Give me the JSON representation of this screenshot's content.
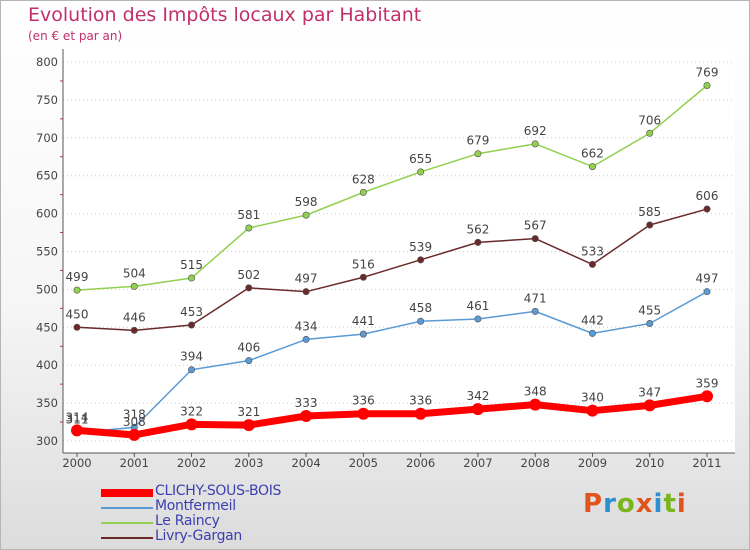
{
  "header": {
    "title": "Evolution des Impôts locaux par Habitant",
    "subtitle": "(en € et par an)"
  },
  "logo": {
    "text": "Proxiti",
    "colors": [
      "#e1541d",
      "#2c8fd0",
      "#7ab51d",
      "#e1541d",
      "#2c8fd0",
      "#7ab51d",
      "#e1541d"
    ]
  },
  "chart_data": {
    "type": "line",
    "x": [
      "2000",
      "2001",
      "2002",
      "2003",
      "2004",
      "2005",
      "2006",
      "2007",
      "2008",
      "2009",
      "2010",
      "2011"
    ],
    "ylim": [
      300,
      800
    ],
    "yticks": [
      300,
      350,
      400,
      450,
      500,
      550,
      600,
      650,
      700,
      750,
      800
    ],
    "grid": true,
    "legend_position": "bottom-left",
    "series": [
      {
        "name": "CLICHY-SOUS-BOIS",
        "color": "#ff0000",
        "emphasis": true,
        "values": [
          314,
          308,
          322,
          321,
          333,
          336,
          336,
          342,
          348,
          340,
          347,
          359
        ]
      },
      {
        "name": "Montfermeil",
        "color": "#5b9bd5",
        "values": [
          311,
          318,
          394,
          406,
          434,
          441,
          458,
          461,
          471,
          442,
          455,
          497
        ]
      },
      {
        "name": "Le Raincy",
        "color": "#92d050",
        "values": [
          499,
          504,
          515,
          581,
          598,
          628,
          655,
          679,
          692,
          662,
          706,
          769
        ]
      },
      {
        "name": "Livry-Gargan",
        "color": "#6b2a2a",
        "values": [
          450,
          446,
          453,
          502,
          497,
          516,
          539,
          562,
          567,
          533,
          585,
          606
        ]
      }
    ]
  }
}
